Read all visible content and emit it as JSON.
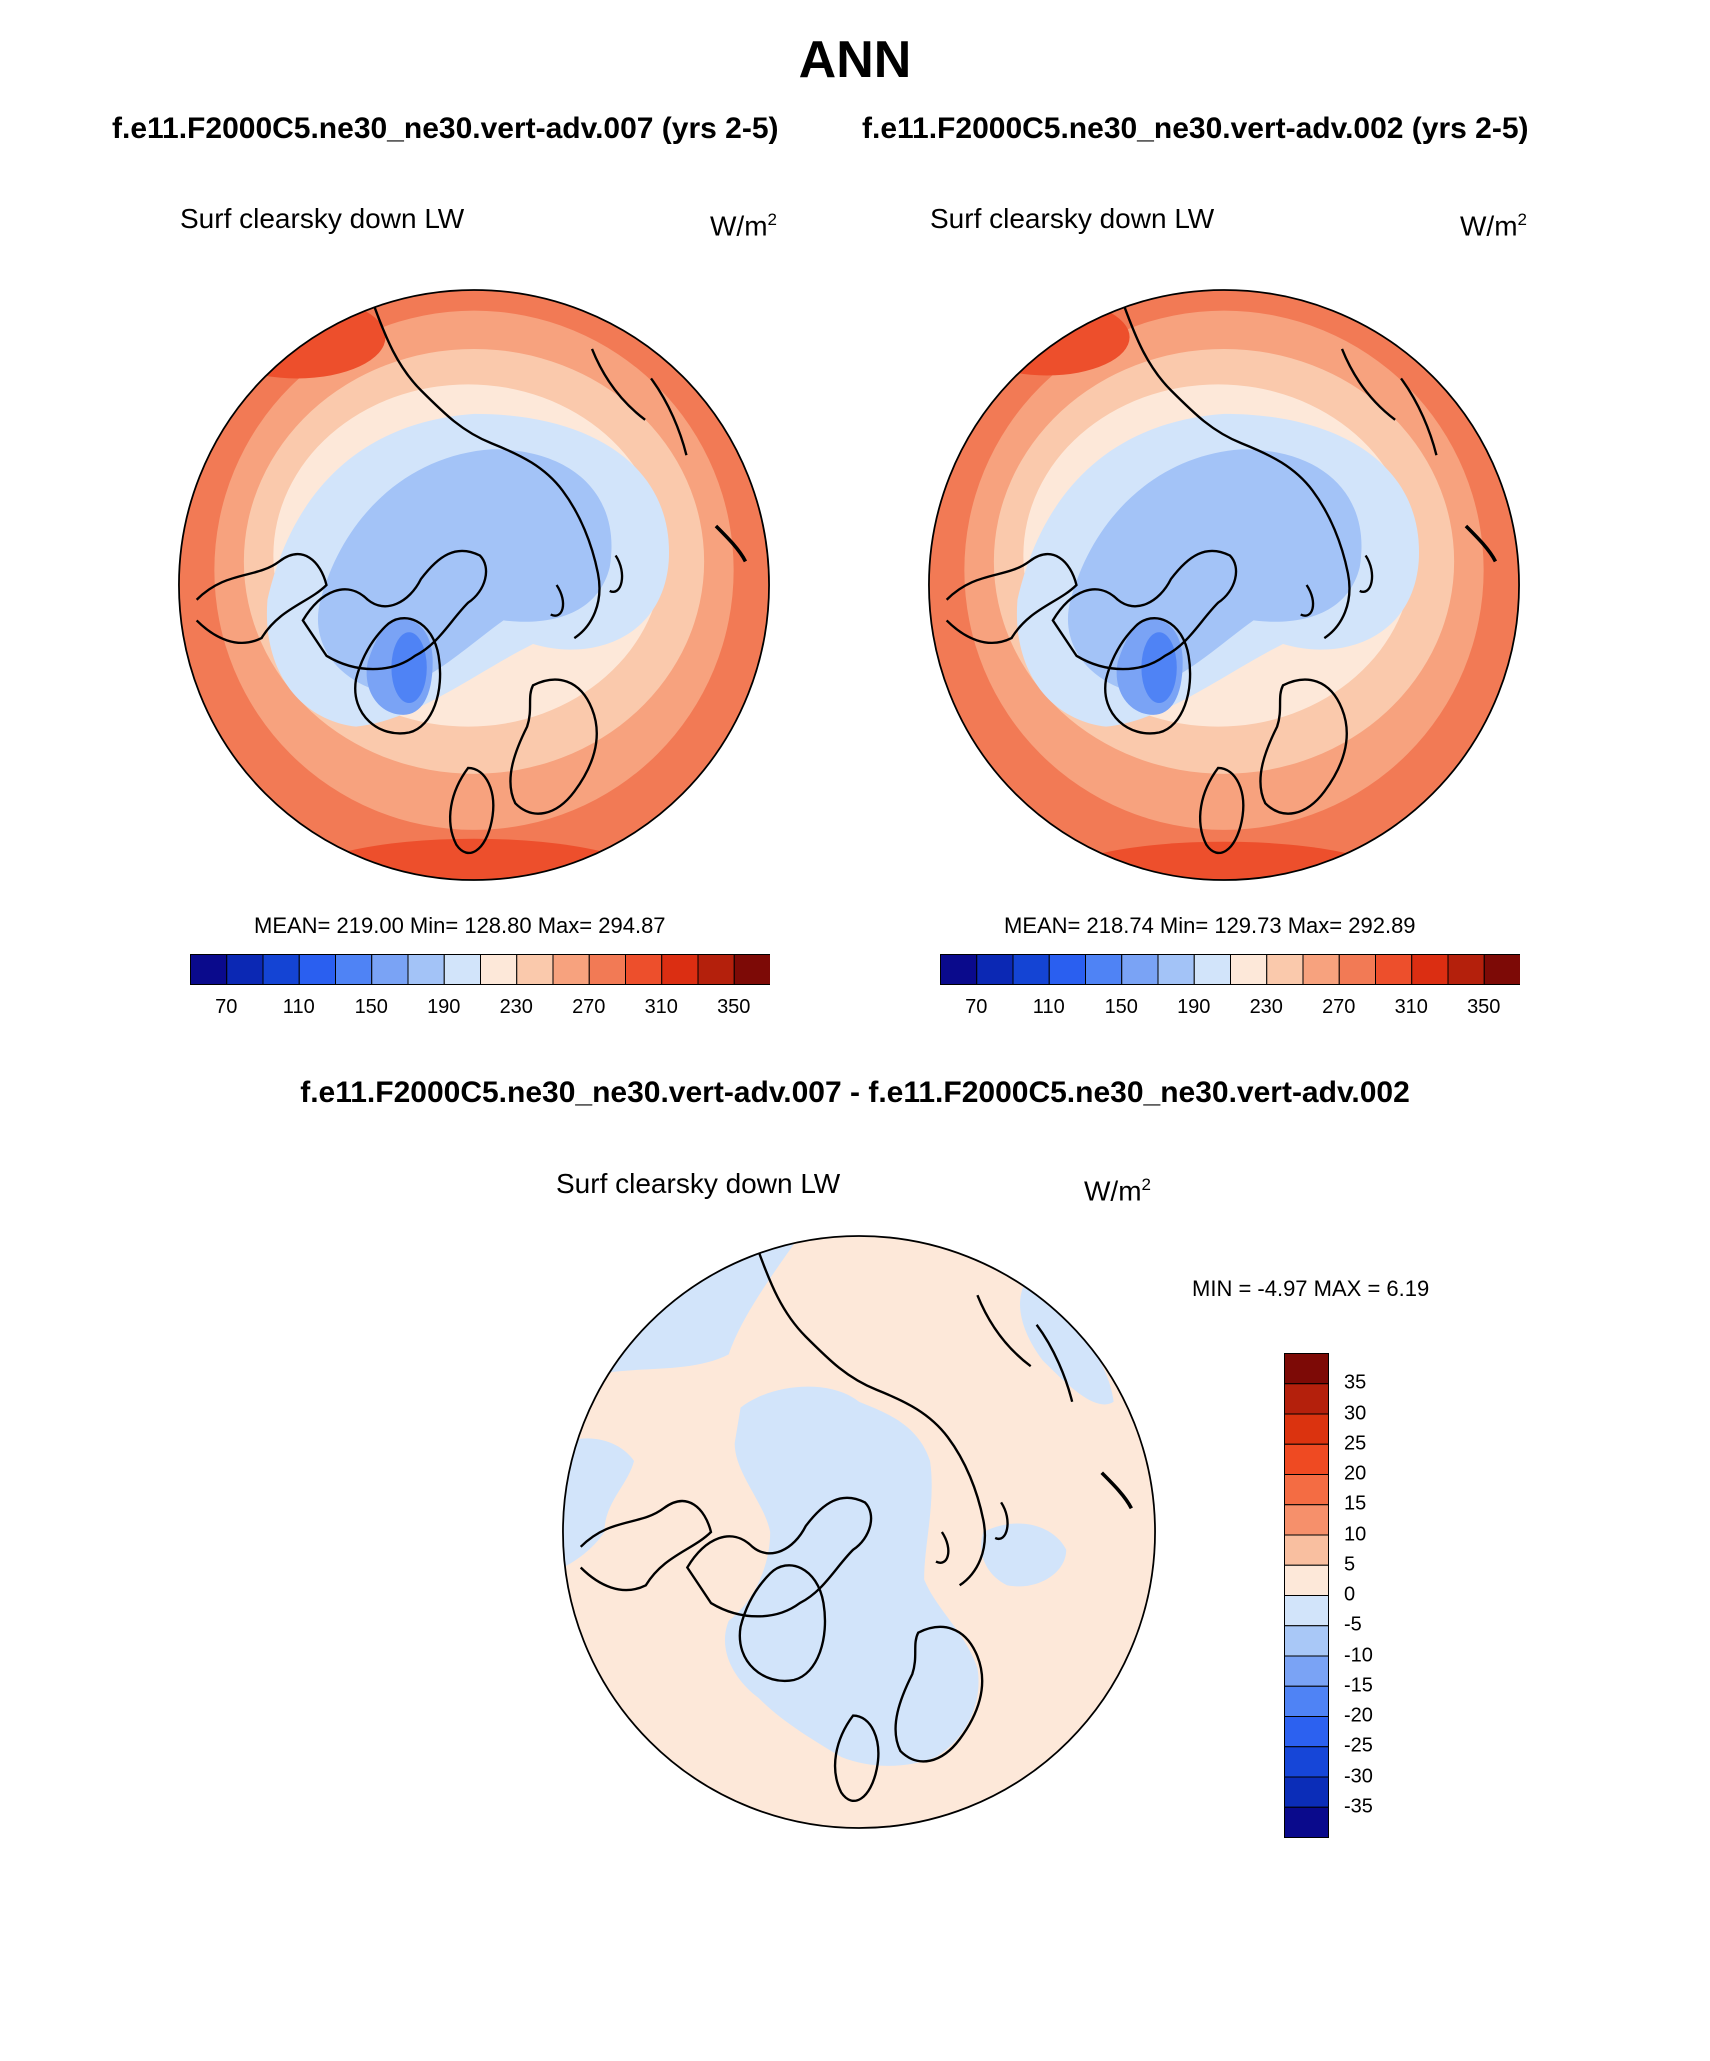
{
  "figure": {
    "season": "ANN",
    "case_titles": [
      "f.e11.F2000C5.ne30_ne30.vert-adv.007 (yrs 2-5)",
      "f.e11.F2000C5.ne30_ne30.vert-adv.002 (yrs 2-5)"
    ],
    "diff_title": "f.e11.F2000C5.ne30_ne30.vert-adv.007 - f.e11.F2000C5.ne30_ne30.vert-adv.002"
  },
  "panels": {
    "left": {
      "variable": "Surf clearsky down LW",
      "units_base": "W/m",
      "units_exp": "2",
      "stats_text": "MEAN= 219.00  Min= 128.80  Max= 294.87"
    },
    "right": {
      "variable": "Surf clearsky down LW",
      "units_base": "W/m",
      "units_exp": "2",
      "stats_text": "MEAN= 218.74  Min= 129.73  Max= 292.89"
    },
    "diff": {
      "variable": "Surf clearsky down LW",
      "units_base": "W/m",
      "units_exp": "2",
      "stats_text": "MIN =  -4.97 MAX =   6.19"
    }
  },
  "colorbar_abs": {
    "colors": [
      "#0a0a8c",
      "#0b28b4",
      "#1444d4",
      "#2a5ff0",
      "#4f83f5",
      "#7aa3f5",
      "#a3c3f7",
      "#d2e4fa",
      "#fde8d9",
      "#fac9ac",
      "#f7a27e",
      "#f27a55",
      "#ed4f2c",
      "#db2e12",
      "#b4200c",
      "#7d0a06"
    ],
    "labels": [
      "70",
      "110",
      "150",
      "190",
      "230",
      "270",
      "310",
      "350"
    ]
  },
  "colorbar_diff": {
    "colors": [
      "#7d0a06",
      "#b4200c",
      "#db330f",
      "#ef4a22",
      "#f46c43",
      "#f6906b",
      "#f9bfa0",
      "#fde8d9",
      "#d2e4fa",
      "#a9c8f7",
      "#7aa3f5",
      "#4f83f5",
      "#2c61f0",
      "#1646d8",
      "#0b2db8",
      "#0a0a8c"
    ],
    "labels": [
      "35",
      "30",
      "25",
      "20",
      "15",
      "10",
      "5",
      "0",
      "-5",
      "-10",
      "-15",
      "-20",
      "-25",
      "-30",
      "-35"
    ]
  }
}
